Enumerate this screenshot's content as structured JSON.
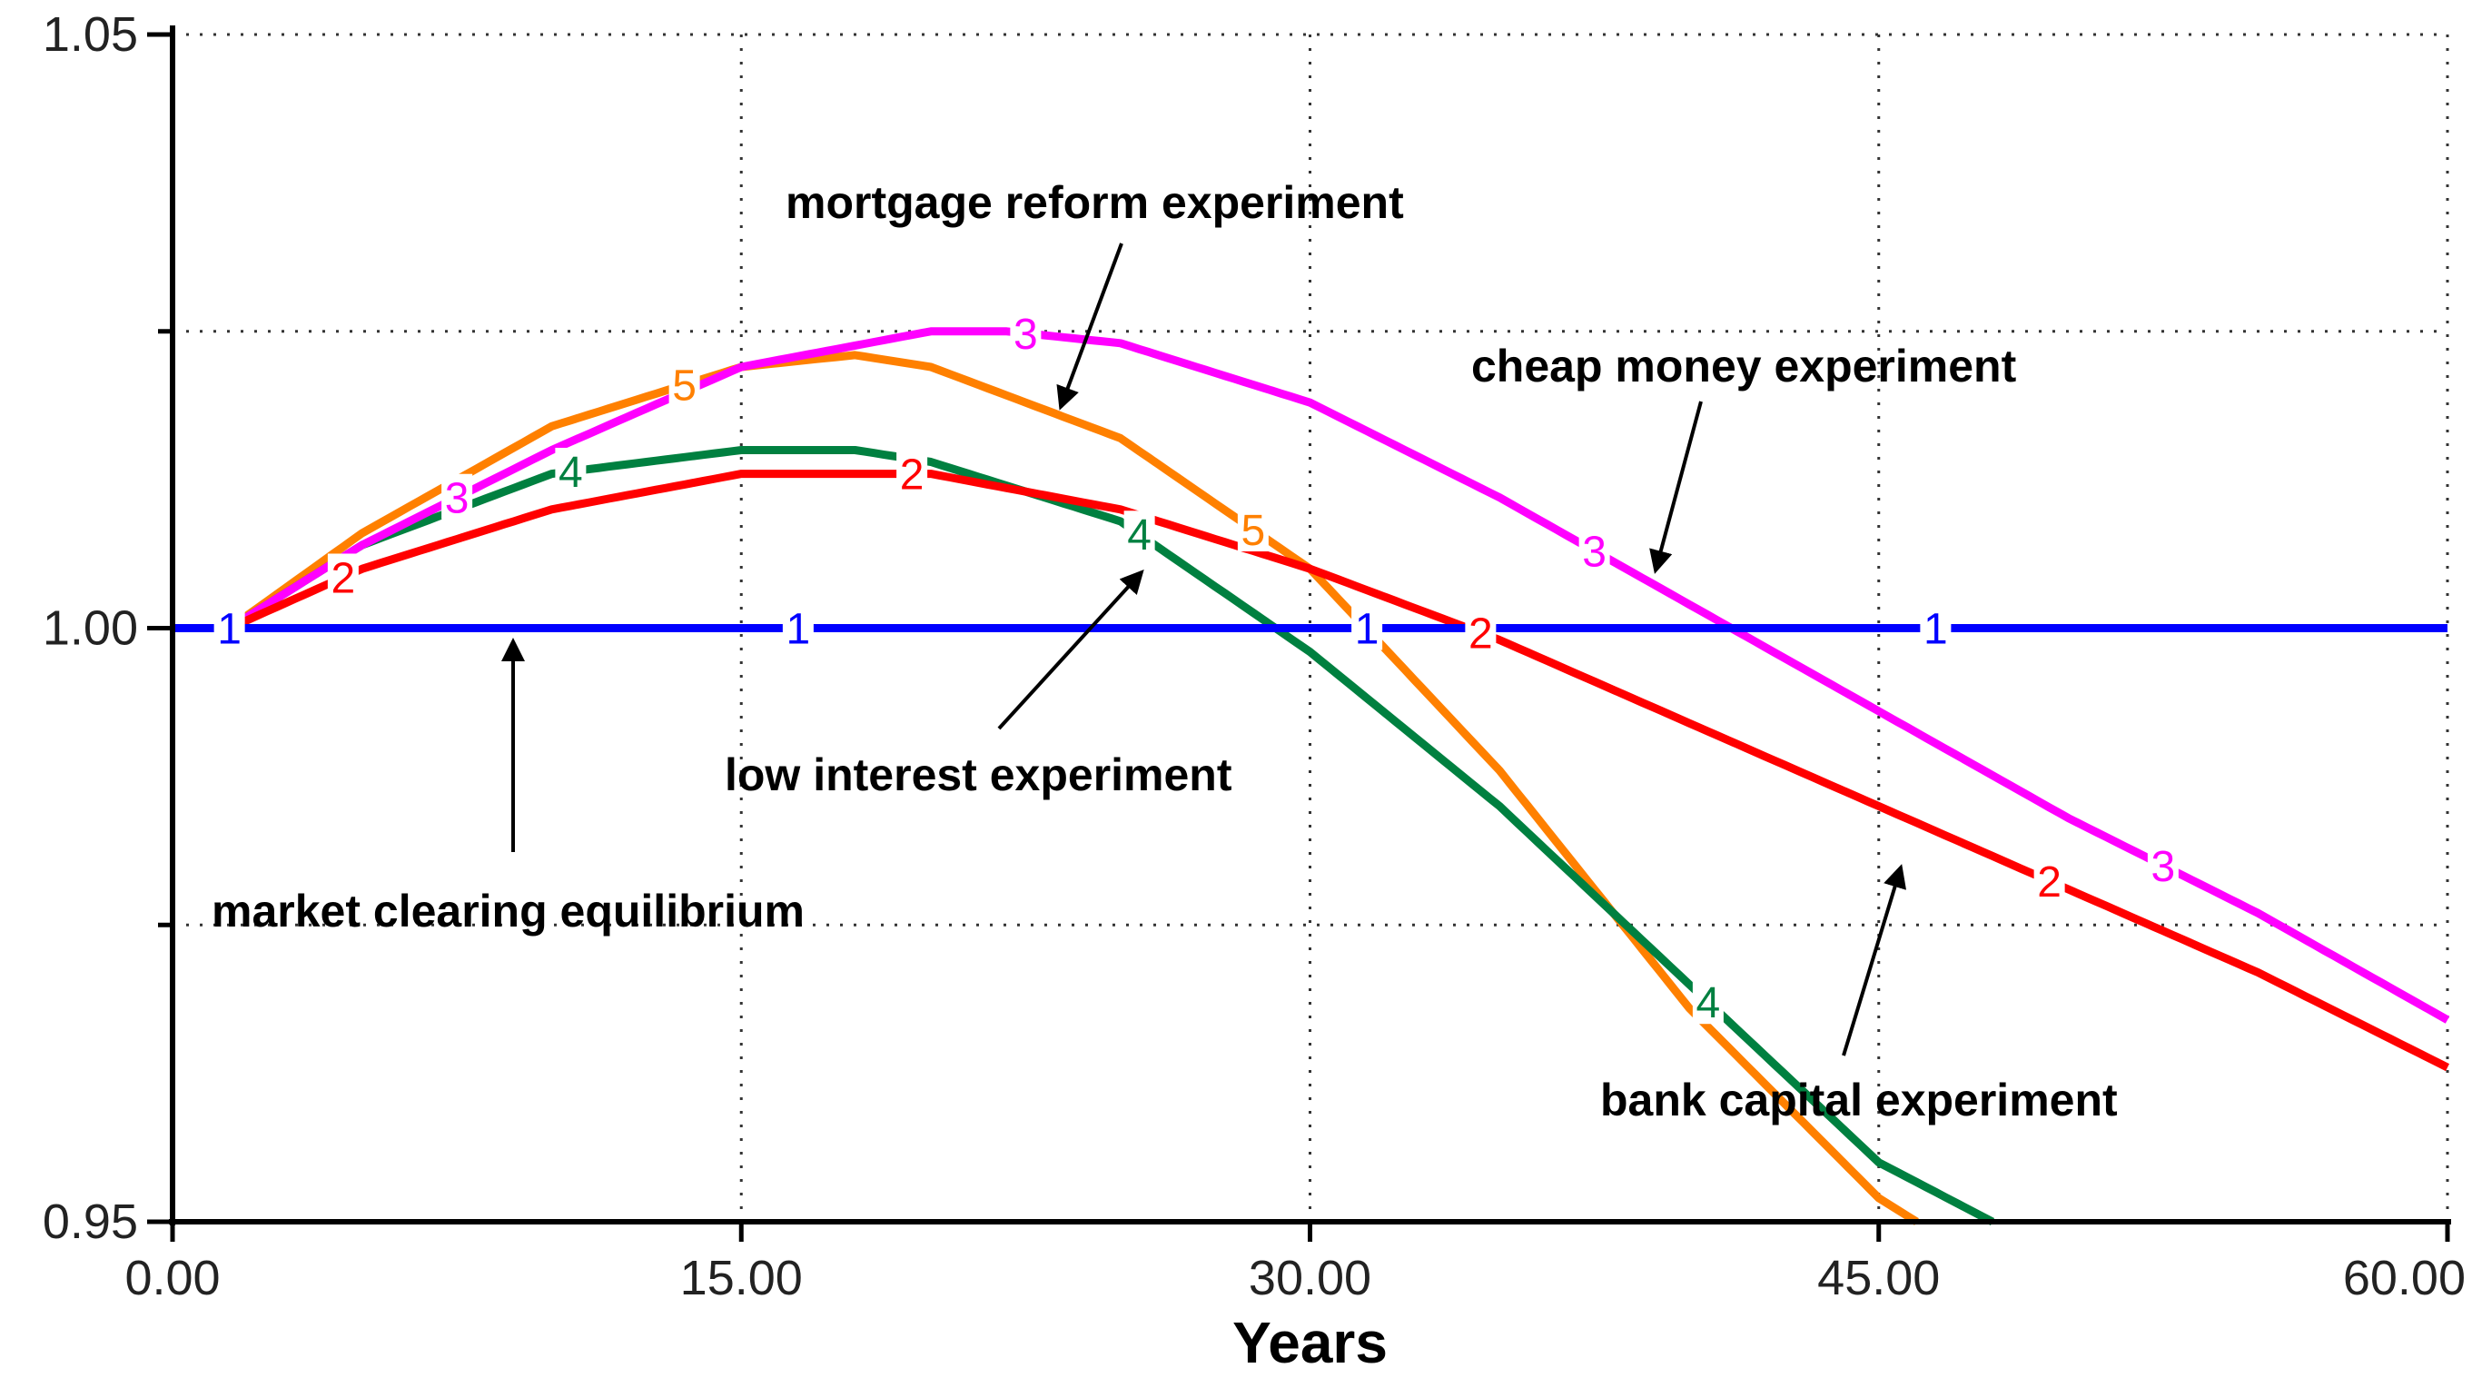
{
  "chart_data": {
    "type": "line",
    "xlabel": "Years",
    "ylabel": "",
    "xlim": [
      0,
      60
    ],
    "ylim": [
      0.95,
      1.05
    ],
    "x_ticks": [
      0,
      15,
      30,
      45,
      60
    ],
    "x_tick_labels": [
      "0.00",
      "15.00",
      "30.00",
      "45.00",
      "60.00"
    ],
    "y_ticks": [
      0.95,
      1.0,
      1.05
    ],
    "y_tick_labels": [
      "0.95",
      "1.00",
      "1.05"
    ],
    "grid": true,
    "grid_style": "dotted",
    "series": [
      {
        "marker": "1",
        "color": "#0000ff",
        "x": [
          0,
          60
        ],
        "y": [
          1.0,
          1.0
        ],
        "marker_x": [
          1.5,
          16.5,
          31.5,
          46.5
        ]
      },
      {
        "marker": "2",
        "color": "#ff0000",
        "x": [
          0,
          1.5,
          5,
          10,
          15,
          20,
          25,
          30,
          35,
          40,
          45,
          50,
          55,
          60
        ],
        "y": [
          1.0,
          1.0,
          1.005,
          1.01,
          1.013,
          1.013,
          1.01,
          1.005,
          0.999,
          0.992,
          0.985,
          0.978,
          0.971,
          0.963
        ],
        "marker_x": [
          4.5,
          19.5,
          34.5,
          49.5
        ]
      },
      {
        "marker": "3",
        "color": "#ff00ff",
        "x": [
          0,
          1.5,
          5,
          10,
          15,
          20,
          22,
          25,
          30,
          35,
          40,
          45,
          50,
          55,
          60
        ],
        "y": [
          1.0,
          1.0,
          1.007,
          1.015,
          1.022,
          1.025,
          1.025,
          1.024,
          1.019,
          1.011,
          1.002,
          0.993,
          0.984,
          0.976,
          0.967
        ],
        "marker_x": [
          7.5,
          22.5,
          37.5,
          52.5
        ]
      },
      {
        "marker": "4",
        "color": "#008040",
        "x": [
          0,
          1.5,
          5,
          10,
          15,
          18,
          20,
          25,
          30,
          35,
          40,
          45,
          48
        ],
        "y": [
          1.0,
          1.0,
          1.007,
          1.013,
          1.015,
          1.015,
          1.014,
          1.009,
          0.998,
          0.985,
          0.97,
          0.955,
          0.95
        ],
        "marker_x": [
          10.5,
          25.5,
          40.5
        ]
      },
      {
        "marker": "5",
        "color": "#ff8000",
        "x": [
          0,
          1.5,
          5,
          10,
          15,
          18,
          20,
          25,
          30,
          35,
          40,
          45,
          46
        ],
        "y": [
          1.0,
          1.0,
          1.008,
          1.017,
          1.022,
          1.023,
          1.022,
          1.016,
          1.005,
          0.988,
          0.968,
          0.952,
          0.95
        ],
        "marker_x": [
          13.5,
          28.5
        ]
      }
    ],
    "annotations": [
      {
        "text": "mortgage reform experiment",
        "target_series": "5"
      },
      {
        "text": "cheap money experiment",
        "target_series": "3"
      },
      {
        "text": "low interest experiment",
        "target_series": "4"
      },
      {
        "text": "market clearing equilibrium",
        "target_series": "1"
      },
      {
        "text": "bank capital experiment",
        "target_series": "2"
      }
    ]
  }
}
